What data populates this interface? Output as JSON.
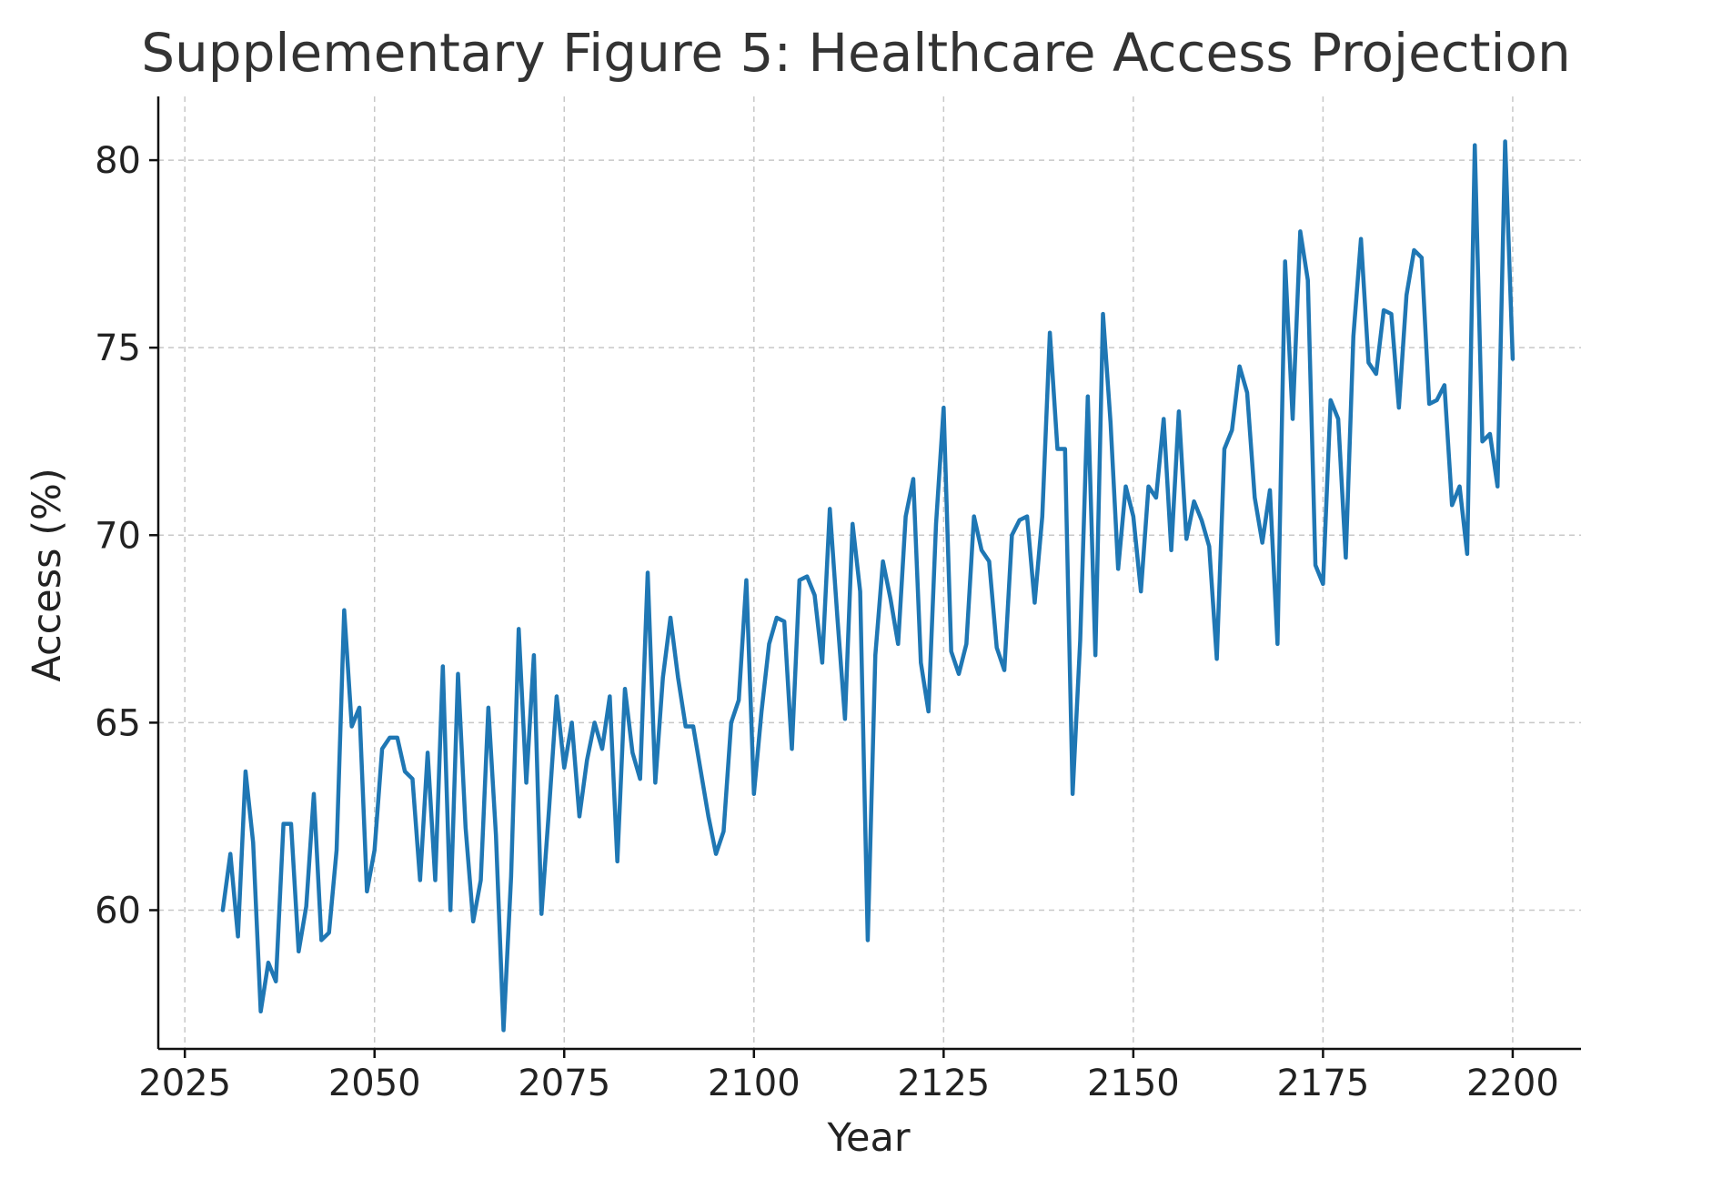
{
  "chart_data": {
    "type": "line",
    "title": "Supplementary Figure 5: Healthcare Access Projection",
    "xlabel": "Year",
    "ylabel": "Access (%)",
    "xlim": [
      2021.5,
      2209
    ],
    "ylim": [
      56.3,
      81.7
    ],
    "xticks": [
      2025,
      2050,
      2075,
      2100,
      2125,
      2150,
      2175,
      2200
    ],
    "yticks": [
      60,
      65,
      70,
      75,
      80
    ],
    "grid": true,
    "series": [
      {
        "color": "#1f77b4",
        "x": [
          2030,
          2031,
          2032,
          2033,
          2034,
          2035,
          2036,
          2037,
          2038,
          2039,
          2040,
          2041,
          2042,
          2043,
          2044,
          2045,
          2046,
          2047,
          2048,
          2049,
          2050,
          2051,
          2052,
          2053,
          2054,
          2055,
          2056,
          2057,
          2058,
          2059,
          2060,
          2061,
          2062,
          2063,
          2064,
          2065,
          2066,
          2067,
          2068,
          2069,
          2070,
          2071,
          2072,
          2073,
          2074,
          2075,
          2076,
          2077,
          2078,
          2079,
          2080,
          2081,
          2082,
          2083,
          2084,
          2085,
          2086,
          2087,
          2088,
          2089,
          2090,
          2091,
          2092,
          2093,
          2094,
          2095,
          2096,
          2097,
          2098,
          2099,
          2100,
          2101,
          2102,
          2103,
          2104,
          2105,
          2106,
          2107,
          2108,
          2109,
          2110,
          2111,
          2112,
          2113,
          2114,
          2115,
          2116,
          2117,
          2118,
          2119,
          2120,
          2121,
          2122,
          2123,
          2124,
          2125,
          2126,
          2127,
          2128,
          2129,
          2130,
          2131,
          2132,
          2133,
          2134,
          2135,
          2136,
          2137,
          2138,
          2139,
          2140,
          2141,
          2142,
          2143,
          2144,
          2145,
          2146,
          2147,
          2148,
          2149,
          2150,
          2151,
          2152,
          2153,
          2154,
          2155,
          2156,
          2157,
          2158,
          2159,
          2160,
          2161,
          2162,
          2163,
          2164,
          2165,
          2166,
          2167,
          2168,
          2169,
          2170,
          2171,
          2172,
          2173,
          2174,
          2175,
          2176,
          2177,
          2178,
          2179,
          2180,
          2181,
          2182,
          2183,
          2184,
          2185,
          2186,
          2187,
          2188,
          2189,
          2190,
          2191,
          2192,
          2193,
          2194,
          2195,
          2196,
          2197,
          2198,
          2199,
          2200
        ],
        "values": [
          60.0,
          61.5,
          59.3,
          63.7,
          61.8,
          57.3,
          58.6,
          58.1,
          62.3,
          62.3,
          58.9,
          60.1,
          63.1,
          59.2,
          59.4,
          61.6,
          68.0,
          64.9,
          65.4,
          60.5,
          61.6,
          64.3,
          64.6,
          64.6,
          63.7,
          63.5,
          60.8,
          64.2,
          60.8,
          66.5,
          60.0,
          66.3,
          62.2,
          59.7,
          60.8,
          65.4,
          62.0,
          56.8,
          60.9,
          67.5,
          63.4,
          66.8,
          59.9,
          62.7,
          65.7,
          63.8,
          65.0,
          62.5,
          64.0,
          65.0,
          64.3,
          65.7,
          61.3,
          65.9,
          64.2,
          63.5,
          69.0,
          63.4,
          66.2,
          67.8,
          66.2,
          64.9,
          64.9,
          63.7,
          62.5,
          61.5,
          62.1,
          65.0,
          65.6,
          68.8,
          63.1,
          65.3,
          67.1,
          67.8,
          67.7,
          64.3,
          68.8,
          68.9,
          68.4,
          66.6,
          70.7,
          67.8,
          65.1,
          70.3,
          68.5,
          59.2,
          66.8,
          69.3,
          68.3,
          67.1,
          70.5,
          71.5,
          66.6,
          65.3,
          70.3,
          73.4,
          66.9,
          66.3,
          67.1,
          70.5,
          69.6,
          69.3,
          67.0,
          66.4,
          70.0,
          70.4,
          70.5,
          68.2,
          70.5,
          75.4,
          72.3,
          72.3,
          63.1,
          67.2,
          73.7,
          66.8,
          75.9,
          73.0,
          69.1,
          71.3,
          70.5,
          68.5,
          71.3,
          71.0,
          73.1,
          69.6,
          73.3,
          69.9,
          70.9,
          70.4,
          69.7,
          66.7,
          72.3,
          72.8,
          74.5,
          73.8,
          71.0,
          69.8,
          71.2,
          67.1,
          77.3,
          73.1,
          78.1,
          76.8,
          69.2,
          68.7,
          73.6,
          73.1,
          69.4,
          75.3,
          77.9,
          74.6,
          74.3,
          76.0,
          75.9,
          73.4,
          76.4,
          77.6,
          77.4,
          73.5,
          73.6,
          74.0,
          70.8,
          71.3,
          69.5,
          80.4,
          72.5,
          72.7,
          71.3,
          80.5,
          74.7
        ]
      }
    ]
  }
}
